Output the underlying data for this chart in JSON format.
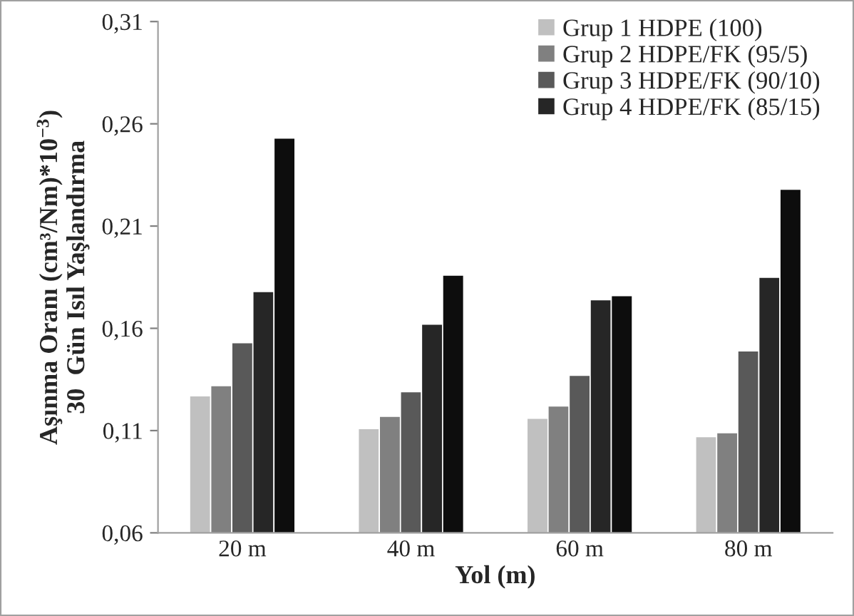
{
  "chart_data": {
    "type": "bar",
    "xlabel": "Yol (m)",
    "ylabel": "Aşınma Oranı (cm³/Nm)*10$^{−3}$)\n30  Gün Isıl Yaşlandırma",
    "categories": [
      "20 m",
      "40 m",
      "60 m",
      "80 m"
    ],
    "series": [
      {
        "name": "Grup 1 HDPE (100)",
        "color": "#c0c0c0",
        "values": [
          0.127,
          0.111,
          0.116,
          0.107
        ]
      },
      {
        "name": "Grup 2 HDPE/FK (95/5)",
        "color": "#808080",
        "values": [
          0.132,
          0.117,
          0.122,
          0.109
        ]
      },
      {
        "name": "Grup 3 HDPE/FK (90/10)",
        "color": "#595959",
        "values": [
          0.153,
          0.129,
          0.137,
          0.149
        ]
      },
      {
        "name": "Grup 4 HDPE/FK (85/15)",
        "color": "#262626",
        "values": [
          0.178,
          0.162,
          0.174,
          0.185
        ]
      },
      {
        "color": "#0d0d0d",
        "values": [
          0.253,
          0.186,
          0.176,
          0.228
        ]
      }
    ],
    "ylim": [
      0.06,
      0.31
    ],
    "yticks": [
      {
        "value": 0.06,
        "label": "0,06"
      },
      {
        "value": 0.11,
        "label": "0,11"
      },
      {
        "value": 0.16,
        "label": "0,16"
      },
      {
        "value": 0.21,
        "label": "0,21"
      },
      {
        "value": 0.26,
        "label": "0,26"
      },
      {
        "value": 0.31,
        "label": "0,31"
      }
    ],
    "grid": false,
    "legend": "top right"
  }
}
